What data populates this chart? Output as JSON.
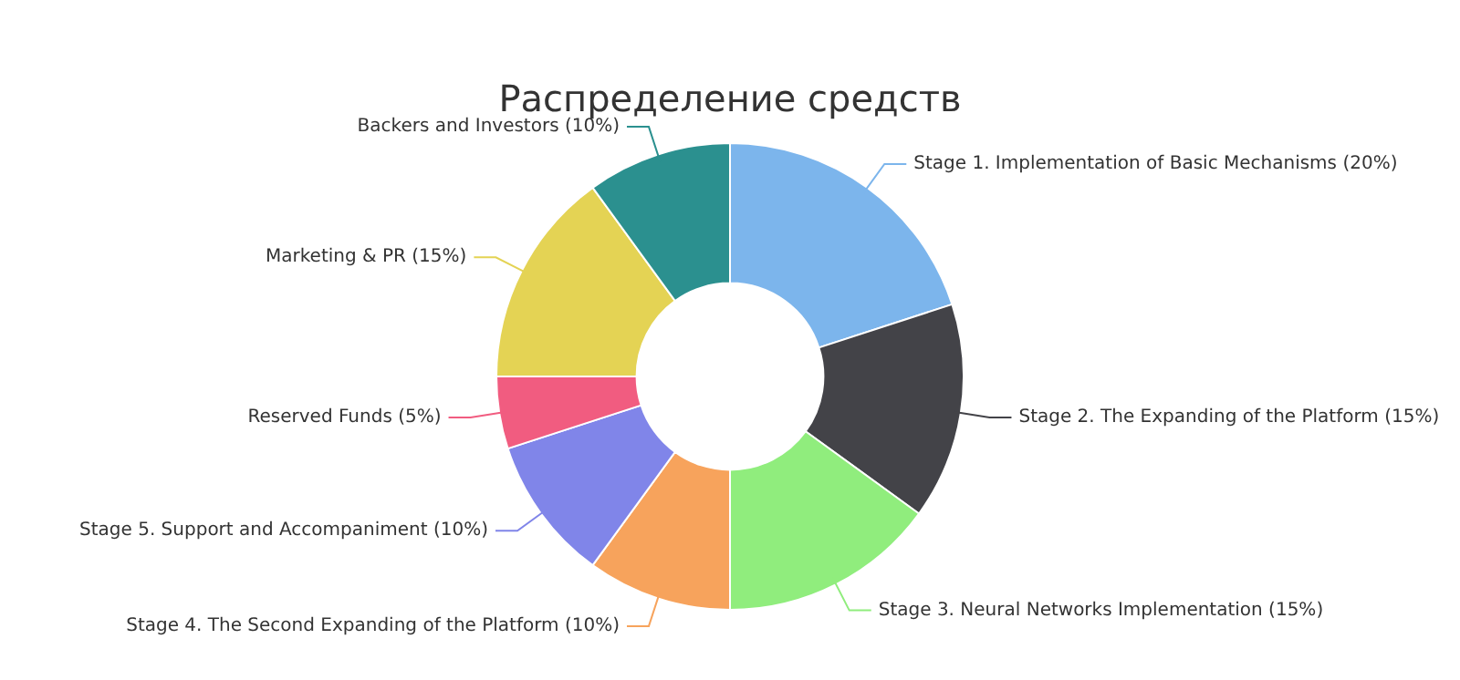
{
  "chart_data": {
    "type": "donut",
    "title": "Распределение средств",
    "categories": [
      "Stage 1. Implementation of Basic Mechanisms (20%)",
      "Stage 2. The Expanding of the Platform (15%)",
      "Stage 3. Neural Networks Implementation (15%)",
      "Stage 4. The Second Expanding of the Platform (10%)",
      "Stage 5. Support and Accompaniment (10%)",
      "Reserved Funds (5%)",
      "Marketing & PR (15%)",
      "Backers and Investors (10%)"
    ],
    "values": [
      20,
      15,
      15,
      10,
      10,
      5,
      15,
      10
    ],
    "colors": [
      "#7cb5ec",
      "#434348",
      "#90ed7d",
      "#f7a35c",
      "#8085e9",
      "#f15c80",
      "#e4d354",
      "#2b908f"
    ],
    "legend": false
  }
}
